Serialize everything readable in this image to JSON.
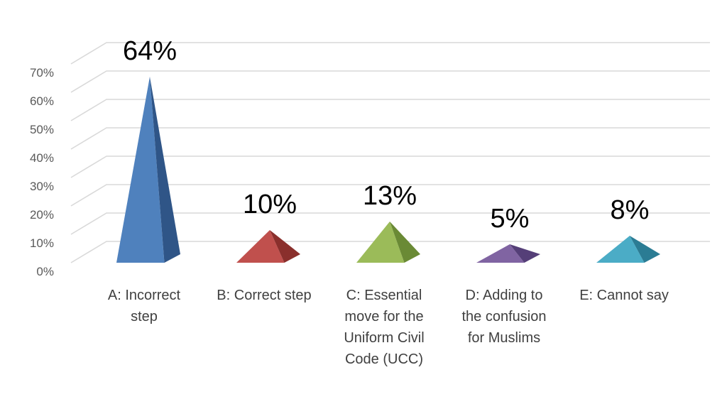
{
  "chart_data": {
    "type": "bar",
    "shape": "pyramid-3d",
    "categories": [
      [
        "A: Incorrect",
        "step"
      ],
      [
        "B: Correct step"
      ],
      [
        "C: Essential",
        "move for the",
        "Uniform Civil",
        "Code (UCC)"
      ],
      [
        "D: Adding to",
        "the confusion",
        "for Muslims"
      ],
      [
        "E: Cannot say"
      ]
    ],
    "values": [
      64,
      10,
      13,
      5,
      8
    ],
    "data_labels": [
      "64%",
      "10%",
      "13%",
      "5%",
      "8%"
    ],
    "colors": [
      "#4F81BD",
      "#C0504D",
      "#9BBB59",
      "#8064A2",
      "#4BACC6"
    ],
    "dark_colors": [
      "#2F5587",
      "#8A2F2C",
      "#6A8A35",
      "#553F78",
      "#2B7C94"
    ],
    "ylim": [
      0,
      70
    ],
    "yticks": [
      "0%",
      "10%",
      "20%",
      "30%",
      "40%",
      "50%",
      "60%",
      "70%"
    ],
    "grid": true,
    "gridline_color": "#D9D9D9"
  }
}
